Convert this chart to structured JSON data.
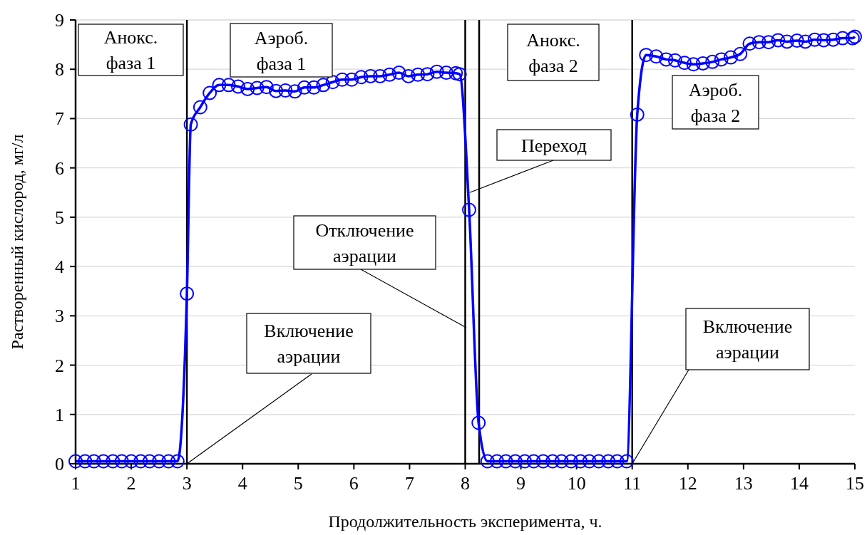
{
  "chart_data": {
    "type": "line",
    "xlabel": "Продолжительность эксперимента, ч.",
    "ylabel": "Растворенный кислород, мг/л",
    "xlim": [
      1,
      15
    ],
    "ylim": [
      0,
      9
    ],
    "xticks": [
      1,
      2,
      3,
      4,
      5,
      6,
      7,
      8,
      9,
      10,
      11,
      12,
      13,
      14,
      15
    ],
    "yticks": [
      0,
      1,
      2,
      3,
      4,
      5,
      6,
      7,
      8,
      9
    ],
    "grid": "y",
    "marker": "circle",
    "line_style": "solid",
    "series": [
      {
        "color": "#0000ff",
        "x": [
          1,
          1.17,
          1.33,
          1.5,
          1.67,
          1.83,
          2,
          2.17,
          2.33,
          2.5,
          2.67,
          2.83,
          3,
          3.07,
          3.24,
          3.41,
          3.58,
          3.75,
          3.92,
          4.09,
          4.26,
          4.43,
          4.6,
          4.77,
          4.94,
          5.11,
          5.28,
          5.45,
          5.62,
          5.79,
          5.96,
          6.13,
          6.3,
          6.47,
          6.64,
          6.81,
          6.98,
          7.15,
          7.32,
          7.49,
          7.66,
          7.83,
          7.9,
          8.07,
          8.24,
          8.4,
          8.57,
          8.73,
          8.9,
          9.07,
          9.23,
          9.4,
          9.57,
          9.73,
          9.9,
          10.07,
          10.23,
          10.4,
          10.57,
          10.73,
          10.9,
          11.09,
          11.25,
          11.43,
          11.61,
          11.77,
          11.94,
          12.1,
          12.27,
          12.44,
          12.6,
          12.77,
          12.94,
          13.11,
          13.28,
          13.45,
          13.62,
          13.78,
          13.96,
          14.11,
          14.28,
          14.44,
          14.61,
          14.78,
          14.96,
          15
        ],
        "values": [
          0.05,
          0.05,
          0.05,
          0.05,
          0.05,
          0.05,
          0.05,
          0.05,
          0.05,
          0.05,
          0.05,
          0.05,
          3.45,
          6.88,
          7.23,
          7.52,
          7.68,
          7.68,
          7.65,
          7.6,
          7.62,
          7.64,
          7.56,
          7.57,
          7.55,
          7.63,
          7.63,
          7.68,
          7.74,
          7.79,
          7.79,
          7.84,
          7.86,
          7.86,
          7.89,
          7.93,
          7.86,
          7.89,
          7.9,
          7.95,
          7.93,
          7.92,
          7.9,
          5.15,
          0.83,
          0.05,
          0.05,
          0.05,
          0.05,
          0.05,
          0.05,
          0.05,
          0.05,
          0.05,
          0.05,
          0.05,
          0.05,
          0.05,
          0.05,
          0.05,
          0.05,
          7.08,
          8.29,
          8.26,
          8.2,
          8.18,
          8.13,
          8.1,
          8.12,
          8.15,
          8.2,
          8.24,
          8.31,
          8.52,
          8.55,
          8.55,
          8.59,
          8.56,
          8.58,
          8.56,
          8.6,
          8.59,
          8.6,
          8.63,
          8.63,
          8.66
        ]
      }
    ],
    "ref_lines": [
      {
        "axis": "x",
        "value": 3,
        "color": "#000000"
      },
      {
        "axis": "x",
        "value": 8,
        "color": "#000000"
      },
      {
        "axis": "x",
        "value": 8.25,
        "color": "#000000"
      },
      {
        "axis": "x",
        "value": 11,
        "color": "#000000"
      }
    ],
    "annotations": [
      "Анокс. фаза 1",
      "Аэроб. фаза 1",
      "Анокс. фаза 2",
      "Аэроб. фаза 2",
      {
        "text": "Переход",
        "x": 8.08,
        "y": 5.5
      },
      {
        "text": "Отключение аэрации",
        "x": 8.02,
        "y": 2.76
      },
      {
        "text": "Включение аэрации",
        "x": 3,
        "y": 0
      },
      {
        "text": "Включение аэрации",
        "x": 11,
        "y": 0
      }
    ]
  }
}
